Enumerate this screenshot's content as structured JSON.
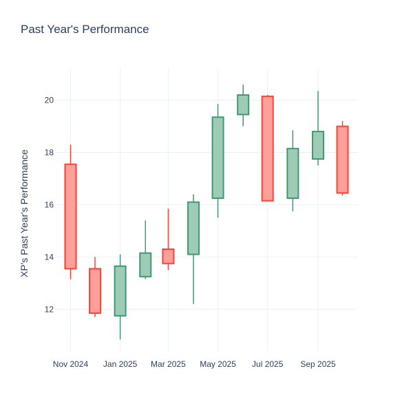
{
  "chart_data": {
    "type": "candlestick",
    "title": "Past Year's Performance",
    "xlabel": "",
    "ylabel": "XP's Past Year's Performance",
    "ylim": [
      10.4,
      21.2
    ],
    "y_ticks": [
      12,
      14,
      16,
      18,
      20
    ],
    "x_ticks": [
      {
        "label": "Nov 2024",
        "date": "2024-11-01"
      },
      {
        "label": "Jan 2025",
        "date": "2025-01-01"
      },
      {
        "label": "Mar 2025",
        "date": "2025-03-01"
      },
      {
        "label": "May 2025",
        "date": "2025-05-01"
      },
      {
        "label": "Jul 2025",
        "date": "2025-07-01"
      },
      {
        "label": "Sep 2025",
        "date": "2025-09-01"
      }
    ],
    "x_range": [
      "2024-10-13",
      "2025-10-20"
    ],
    "increasing_color": "#3d9970",
    "increasing_fill": "#9ecbb6",
    "decreasing_color": "#ff4136",
    "decreasing_fill": "#ff9f9a",
    "candles": [
      {
        "date": "2024-11-01",
        "open": 17.55,
        "high": 18.3,
        "low": 13.15,
        "close": 13.55
      },
      {
        "date": "2024-12-01",
        "open": 13.55,
        "high": 14.0,
        "low": 11.7,
        "close": 11.85
      },
      {
        "date": "2025-01-01",
        "open": 11.75,
        "high": 14.1,
        "low": 10.85,
        "close": 13.65
      },
      {
        "date": "2025-02-01",
        "open": 13.25,
        "high": 15.4,
        "low": 13.15,
        "close": 14.15
      },
      {
        "date": "2025-03-01",
        "open": 14.3,
        "high": 15.85,
        "low": 13.5,
        "close": 13.75
      },
      {
        "date": "2025-04-01",
        "open": 14.1,
        "high": 16.4,
        "low": 12.2,
        "close": 16.1
      },
      {
        "date": "2025-05-01",
        "open": 16.25,
        "high": 19.85,
        "low": 15.5,
        "close": 19.35
      },
      {
        "date": "2025-06-01",
        "open": 19.45,
        "high": 20.6,
        "low": 19.0,
        "close": 20.2
      },
      {
        "date": "2025-07-01",
        "open": 20.15,
        "high": 20.2,
        "low": 16.15,
        "close": 16.15
      },
      {
        "date": "2025-08-01",
        "open": 16.25,
        "high": 18.85,
        "low": 15.75,
        "close": 18.15
      },
      {
        "date": "2025-09-01",
        "open": 17.75,
        "high": 20.35,
        "low": 17.5,
        "close": 18.8
      },
      {
        "date": "2025-10-01",
        "open": 19.0,
        "high": 19.2,
        "low": 16.35,
        "close": 16.45
      }
    ]
  }
}
